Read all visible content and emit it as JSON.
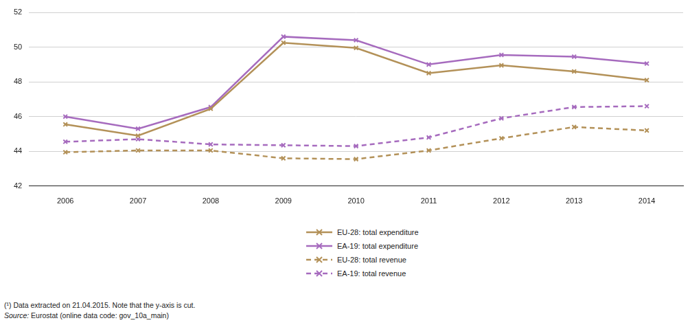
{
  "chart_data": {
    "type": "line",
    "categories": [
      "2006",
      "2007",
      "2008",
      "2009",
      "2010",
      "2011",
      "2012",
      "2013",
      "2014"
    ],
    "series": [
      {
        "name": "EU-28: total expenditure",
        "color": "#b39158",
        "line_style": "solid",
        "marker": "cross",
        "values": [
          45.55,
          44.9,
          46.45,
          50.25,
          49.95,
          48.5,
          48.95,
          48.6,
          48.1
        ]
      },
      {
        "name": "EA-19: total expenditure",
        "color": "#a66bbe",
        "line_style": "solid",
        "marker": "cross",
        "values": [
          46.0,
          45.3,
          46.55,
          50.6,
          50.4,
          49.0,
          49.55,
          49.45,
          49.05
        ]
      },
      {
        "name": "EU-28: total revenue",
        "color": "#b39158",
        "line_style": "dashed",
        "marker": "cross",
        "values": [
          43.95,
          44.05,
          44.05,
          43.6,
          43.55,
          44.05,
          44.75,
          45.4,
          45.2
        ]
      },
      {
        "name": "EA-19: total revenue",
        "color": "#a66bbe",
        "line_style": "dashed",
        "marker": "cross",
        "values": [
          44.55,
          44.7,
          44.4,
          44.35,
          44.3,
          44.8,
          45.9,
          46.55,
          46.6
        ]
      }
    ],
    "ylim": [
      42,
      52
    ],
    "yticks": [
      42,
      44,
      46,
      48,
      50,
      52
    ],
    "grid": true,
    "legend": "bottom",
    "annotations": [
      "(¹) Data extracted on 21.04.2015. Note that the y-axis is cut.",
      "Source: Eurostat (online data code: gov_10a_main)"
    ]
  }
}
